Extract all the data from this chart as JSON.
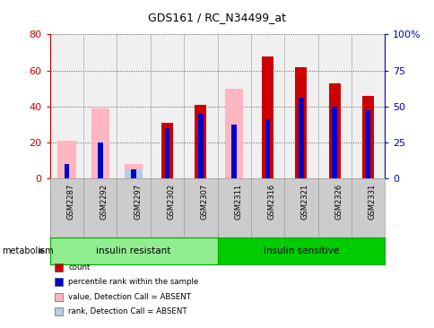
{
  "title": "GDS161 / RC_N34499_at",
  "samples": [
    "GSM2287",
    "GSM2292",
    "GSM2297",
    "GSM2302",
    "GSM2307",
    "GSM2311",
    "GSM2316",
    "GSM2321",
    "GSM2326",
    "GSM2331"
  ],
  "count_red": [
    0,
    0,
    0,
    31,
    41,
    0,
    68,
    62,
    53,
    46
  ],
  "percentile_blue": [
    8,
    20,
    5,
    28,
    36,
    30,
    33,
    45,
    40,
    38
  ],
  "value_absent_pink": [
    21,
    39,
    8,
    0,
    0,
    50,
    0,
    0,
    0,
    0
  ],
  "rank_absent_lightblue": [
    0,
    0,
    5,
    0,
    0,
    0,
    0,
    0,
    0,
    0
  ],
  "groups": [
    {
      "label": "insulin resistant",
      "start": 0,
      "end": 5,
      "color": "#90ee90"
    },
    {
      "label": "insulin sensitive",
      "start": 5,
      "end": 10,
      "color": "#00cc00"
    }
  ],
  "ylim_left": [
    0,
    80
  ],
  "ylim_right": [
    0,
    100
  ],
  "yticks_left": [
    0,
    20,
    40,
    60,
    80
  ],
  "yticks_right": [
    0,
    25,
    50,
    75,
    100
  ],
  "yticklabels_right": [
    "0",
    "25",
    "50",
    "75",
    "100%"
  ],
  "left_tick_color": "#cc0000",
  "right_tick_color": "#0000cc",
  "legend_items": [
    {
      "label": "count",
      "color": "#cc0000"
    },
    {
      "label": "percentile rank within the sample",
      "color": "#0000cc"
    },
    {
      "label": "value, Detection Call = ABSENT",
      "color": "#ffb6c1"
    },
    {
      "label": "rank, Detection Call = ABSENT",
      "color": "#b8cce4"
    }
  ],
  "metabolism_label": "metabolism"
}
